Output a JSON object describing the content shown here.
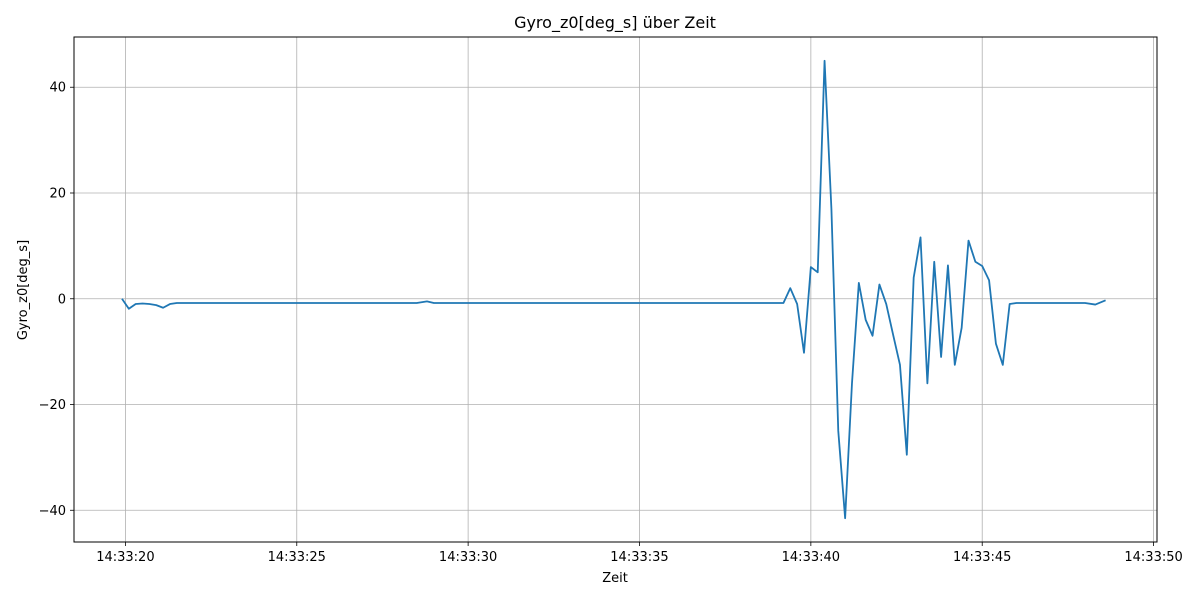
{
  "chart_data": {
    "type": "line",
    "title": "Gyro_z0[deg_s] über Zeit",
    "xlabel": "Zeit",
    "ylabel": "Gyro_z0[deg_s]",
    "xlim": [
      "14:33:18.5",
      "14:33:50.1"
    ],
    "ylim": [
      -46,
      49.5
    ],
    "xticks": [
      "14:33:20",
      "14:33:25",
      "14:33:30",
      "14:33:35",
      "14:33:40",
      "14:33:45",
      "14:33:50"
    ],
    "yticks": [
      -40,
      -20,
      0,
      20,
      40
    ],
    "ytick_labels": [
      "−40",
      "−20",
      "0",
      "20",
      "40"
    ],
    "grid": true,
    "colors": {
      "line": "#1f77b4",
      "grid": "#b0b0b0"
    },
    "series": [
      {
        "name": "",
        "x": [
          "14:33:19.9",
          "14:33:20.1",
          "14:33:20.3",
          "14:33:20.5",
          "14:33:20.7",
          "14:33:20.9",
          "14:33:21.1",
          "14:33:21.3",
          "14:33:21.5",
          "14:33:21.8",
          "14:33:22.5",
          "14:33:23.5",
          "14:33:24.5",
          "14:33:25.5",
          "14:33:26.5",
          "14:33:27.5",
          "14:33:28.5",
          "14:33:28.8",
          "14:33:29.0",
          "14:33:29.5",
          "14:33:30.5",
          "14:33:31.5",
          "14:33:32.5",
          "14:33:33.5",
          "14:33:34.5",
          "14:33:35.5",
          "14:33:36.5",
          "14:33:37.5",
          "14:33:38.5",
          "14:33:39.2",
          "14:33:39.4",
          "14:33:39.6",
          "14:33:39.8",
          "14:33:40.0",
          "14:33:40.2",
          "14:33:40.4",
          "14:33:40.6",
          "14:33:40.8",
          "14:33:41.0",
          "14:33:41.2",
          "14:33:41.4",
          "14:33:41.6",
          "14:33:41.8",
          "14:33:42.0",
          "14:33:42.2",
          "14:33:42.4",
          "14:33:42.6",
          "14:33:42.8",
          "14:33:43.0",
          "14:33:43.2",
          "14:33:43.4",
          "14:33:43.6",
          "14:33:43.8",
          "14:33:44.0",
          "14:33:44.2",
          "14:33:44.4",
          "14:33:44.6",
          "14:33:44.8",
          "14:33:45.0",
          "14:33:45.2",
          "14:33:45.4",
          "14:33:45.6",
          "14:33:45.8",
          "14:33:46.0",
          "14:33:46.2",
          "14:33:46.4",
          "14:33:47.0",
          "14:33:48.0",
          "14:33:48.3",
          "14:33:48.6"
        ],
        "y": [
          0,
          -1.9,
          -1,
          -0.9,
          -1,
          -1.2,
          -1.7,
          -1,
          -0.8,
          -0.8,
          -0.8,
          -0.8,
          -0.8,
          -0.8,
          -0.8,
          -0.8,
          -0.8,
          -0.5,
          -0.8,
          -0.8,
          -0.8,
          -0.8,
          -0.8,
          -0.8,
          -0.8,
          -0.8,
          -0.8,
          -0.8,
          -0.8,
          -0.8,
          2,
          -1,
          -10.2,
          6,
          5,
          45,
          17,
          -25,
          -41.5,
          -16,
          3,
          -4,
          -7,
          2.7,
          -1,
          -6.8,
          -12.5,
          -29.5,
          4,
          11.6,
          -16,
          7,
          -11,
          6.3,
          -12.5,
          -5.5,
          11,
          7,
          6.2,
          3.5,
          -8.5,
          -12.5,
          -1,
          -0.8,
          -0.8,
          -0.8,
          -0.8,
          -0.8,
          -1.1,
          -0.3
        ]
      }
    ]
  }
}
